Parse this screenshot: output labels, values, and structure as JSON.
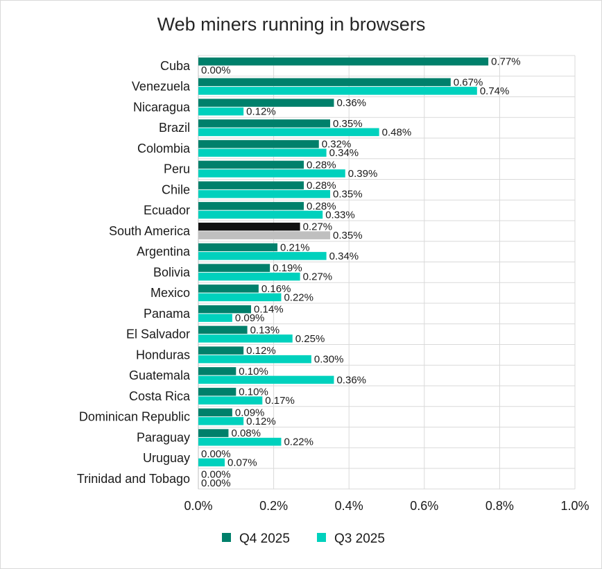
{
  "chart_data": {
    "type": "bar",
    "orientation": "horizontal",
    "title": "Web miners running in browsers",
    "categories": [
      "Cuba",
      "Venezuela",
      "Nicaragua",
      "Brazil",
      "Colombia",
      "Peru",
      "Chile",
      "Ecuador",
      "South America",
      "Argentina",
      "Bolivia",
      "Mexico",
      "Panama",
      "El Salvador",
      "Honduras",
      "Guatemala",
      "Costa Rica",
      "Dominican Republic",
      "Paraguay",
      "Uruguay",
      "Trinidad and Tobago"
    ],
    "series": [
      {
        "name": "Q4 2025",
        "color": "#00806b",
        "highlight": {
          "South America": "#111111"
        },
        "values": [
          0.77,
          0.67,
          0.36,
          0.35,
          0.32,
          0.28,
          0.28,
          0.28,
          0.27,
          0.21,
          0.19,
          0.16,
          0.14,
          0.13,
          0.12,
          0.1,
          0.1,
          0.09,
          0.08,
          0.0,
          0.0
        ],
        "labels": [
          "0.77%",
          "0.67%",
          "0.36%",
          "0.35%",
          "0.32%",
          "0.28%",
          "0.28%",
          "0.28%",
          "0.27%",
          "0.21%",
          "0.19%",
          "0.16%",
          "0.14%",
          "0.13%",
          "0.12%",
          "0.10%",
          "0.10%",
          "0.09%",
          "0.08%",
          "0.00%",
          "0.00%"
        ]
      },
      {
        "name": "Q3 2025",
        "color": "#00d1bd",
        "highlight": {
          "South America": "#bfbfbf"
        },
        "values": [
          0.0,
          0.74,
          0.12,
          0.48,
          0.34,
          0.39,
          0.35,
          0.33,
          0.35,
          0.34,
          0.27,
          0.22,
          0.09,
          0.25,
          0.3,
          0.36,
          0.17,
          0.12,
          0.22,
          0.07,
          0.0
        ],
        "labels": [
          "0.00%",
          "0.74%",
          "0.12%",
          "0.48%",
          "0.34%",
          "0.39%",
          "0.35%",
          "0.33%",
          "0.35%",
          "0.34%",
          "0.27%",
          "0.22%",
          "0.09%",
          "0.25%",
          "0.30%",
          "0.36%",
          "0.17%",
          "0.12%",
          "0.22%",
          "0.07%",
          "0.00%"
        ]
      }
    ],
    "xlim": [
      0,
      1.0
    ],
    "xticks": [
      0,
      0.2,
      0.4,
      0.6,
      0.8,
      1.0
    ],
    "xtick_labels": [
      "0.0%",
      "0.2%",
      "0.4%",
      "0.6%",
      "0.8%",
      "1.0%"
    ],
    "grid": "vertical",
    "legend_position": "bottom"
  }
}
